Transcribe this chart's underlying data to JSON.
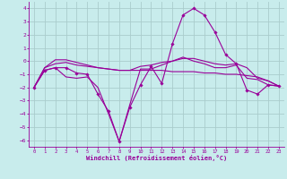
{
  "title": "",
  "xlabel": "Windchill (Refroidissement éolien,°C)",
  "ylabel": "",
  "bg_color": "#c8ecec",
  "line_color": "#990099",
  "grid_color": "#aacccc",
  "xlim": [
    -0.5,
    23.5
  ],
  "ylim": [
    -6.5,
    4.5
  ],
  "yticks": [
    -6,
    -5,
    -4,
    -3,
    -2,
    -1,
    0,
    1,
    2,
    3,
    4
  ],
  "xticks": [
    0,
    1,
    2,
    3,
    4,
    5,
    6,
    7,
    8,
    9,
    10,
    11,
    12,
    13,
    14,
    15,
    16,
    17,
    18,
    19,
    20,
    21,
    22,
    23
  ],
  "lines": [
    {
      "x": [
        0,
        1,
        2,
        3,
        4,
        5,
        6,
        7,
        8,
        9,
        10,
        11,
        12,
        13,
        14,
        15,
        16,
        17,
        18,
        19,
        20,
        21,
        22,
        23
      ],
      "y": [
        -2.0,
        -0.7,
        -0.5,
        -0.5,
        -0.9,
        -1.0,
        -2.5,
        -3.8,
        -6.1,
        -3.5,
        -1.8,
        -0.4,
        -1.7,
        1.3,
        3.5,
        4.0,
        3.5,
        2.2,
        0.5,
        -0.2,
        -2.2,
        -2.5,
        -1.8,
        -1.9
      ],
      "has_markers": true
    },
    {
      "x": [
        0,
        1,
        2,
        3,
        4,
        5,
        6,
        7,
        8,
        9,
        10,
        11,
        12,
        13,
        14,
        15,
        16,
        17,
        18,
        19,
        20,
        21,
        22,
        23
      ],
      "y": [
        -2.0,
        -0.7,
        -0.5,
        -1.2,
        -1.3,
        -1.2,
        -2.0,
        -4.0,
        -6.1,
        -3.3,
        -0.6,
        -0.6,
        -0.3,
        0.0,
        0.3,
        0.0,
        -0.2,
        -0.5,
        -0.5,
        -0.3,
        -1.3,
        -1.4,
        -1.8,
        -1.9
      ],
      "has_markers": false
    },
    {
      "x": [
        0,
        1,
        2,
        3,
        4,
        5,
        6,
        7,
        8,
        9,
        10,
        11,
        12,
        13,
        14,
        15,
        16,
        17,
        18,
        19,
        20,
        21,
        22,
        23
      ],
      "y": [
        -2.0,
        -0.5,
        -0.2,
        -0.1,
        -0.3,
        -0.4,
        -0.5,
        -0.6,
        -0.7,
        -0.7,
        -0.7,
        -0.7,
        -0.7,
        -0.8,
        -0.8,
        -0.8,
        -0.9,
        -0.9,
        -1.0,
        -1.0,
        -1.1,
        -1.2,
        -1.5,
        -1.9
      ],
      "has_markers": false
    },
    {
      "x": [
        0,
        1,
        2,
        3,
        4,
        5,
        6,
        7,
        8,
        9,
        10,
        11,
        12,
        13,
        14,
        15,
        16,
        17,
        18,
        19,
        20,
        21,
        22,
        23
      ],
      "y": [
        -2.0,
        -0.5,
        0.1,
        0.1,
        -0.1,
        -0.3,
        -0.5,
        -0.6,
        -0.7,
        -0.7,
        -0.4,
        -0.3,
        -0.1,
        0.0,
        0.2,
        0.2,
        0.0,
        -0.2,
        -0.3,
        -0.2,
        -0.5,
        -1.3,
        -1.5,
        -1.9
      ],
      "has_markers": false
    }
  ]
}
